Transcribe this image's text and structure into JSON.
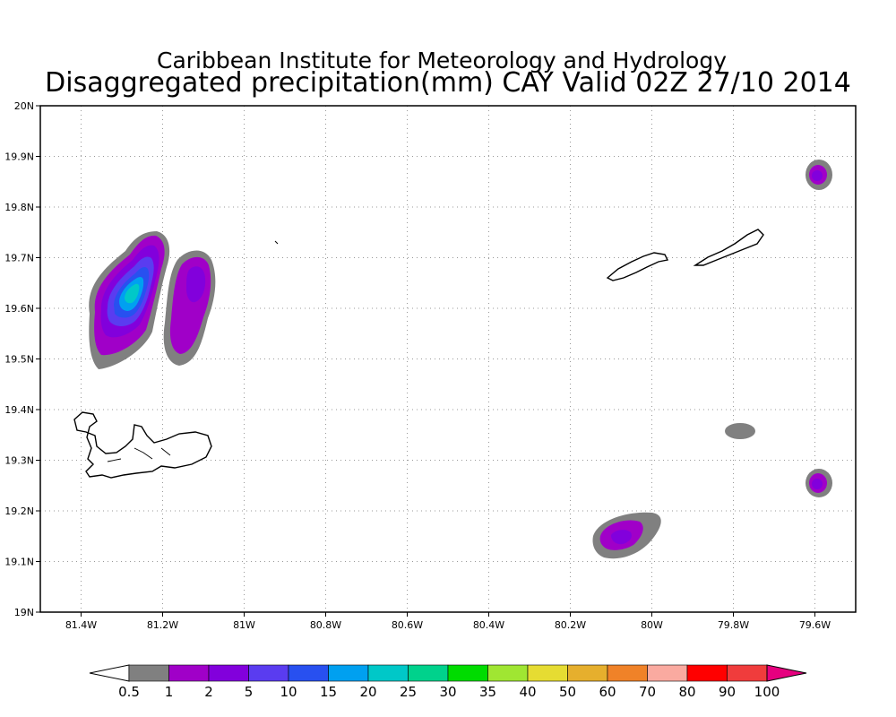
{
  "title": {
    "line1": "Caribbean Institute for Meteorology and Hydrology",
    "line2": "Disaggregated precipitation(mm) CAY Valid 02Z 27/10 2014"
  },
  "map": {
    "lon_range": [
      -81.5,
      -79.5
    ],
    "lat_range": [
      19.0,
      20.0
    ],
    "grid": "dotted",
    "x_ticks": [
      {
        "value": -81.4,
        "label": "81.4W"
      },
      {
        "value": -81.2,
        "label": "81.2W"
      },
      {
        "value": -81.0,
        "label": "81W"
      },
      {
        "value": -80.8,
        "label": "80.8W"
      },
      {
        "value": -80.6,
        "label": "80.6W"
      },
      {
        "value": -80.4,
        "label": "80.4W"
      },
      {
        "value": -80.2,
        "label": "80.2W"
      },
      {
        "value": -80.0,
        "label": "80W"
      },
      {
        "value": -79.8,
        "label": "79.8W"
      },
      {
        "value": -79.6,
        "label": "79.6W"
      }
    ],
    "y_ticks": [
      {
        "value": 19.0,
        "label": "19N"
      },
      {
        "value": 19.1,
        "label": "19.1N"
      },
      {
        "value": 19.2,
        "label": "19.2N"
      },
      {
        "value": 19.3,
        "label": "19.3N"
      },
      {
        "value": 19.4,
        "label": "19.4N"
      },
      {
        "value": 19.5,
        "label": "19.5N"
      },
      {
        "value": 19.6,
        "label": "19.6N"
      },
      {
        "value": 19.7,
        "label": "19.7N"
      },
      {
        "value": 19.8,
        "label": "19.8N"
      },
      {
        "value": 19.9,
        "label": "19.9N"
      },
      {
        "value": 20.0,
        "label": "20N"
      }
    ]
  },
  "colorbar": {
    "labels": [
      "0.5",
      "1",
      "2",
      "5",
      "10",
      "15",
      "20",
      "25",
      "30",
      "35",
      "40",
      "50",
      "60",
      "70",
      "80",
      "90",
      "100"
    ],
    "colors": [
      "#ffffff",
      "#808080",
      "#a000c8",
      "#8200dc",
      "#5a3cf0",
      "#2850f0",
      "#00a0f0",
      "#00c8c8",
      "#00d28c",
      "#00dc00",
      "#a0e632",
      "#e6dc32",
      "#e6af2d",
      "#f08228",
      "#faaaa0",
      "#ff0000",
      "#f03c3c",
      "#e6007f"
    ]
  }
}
